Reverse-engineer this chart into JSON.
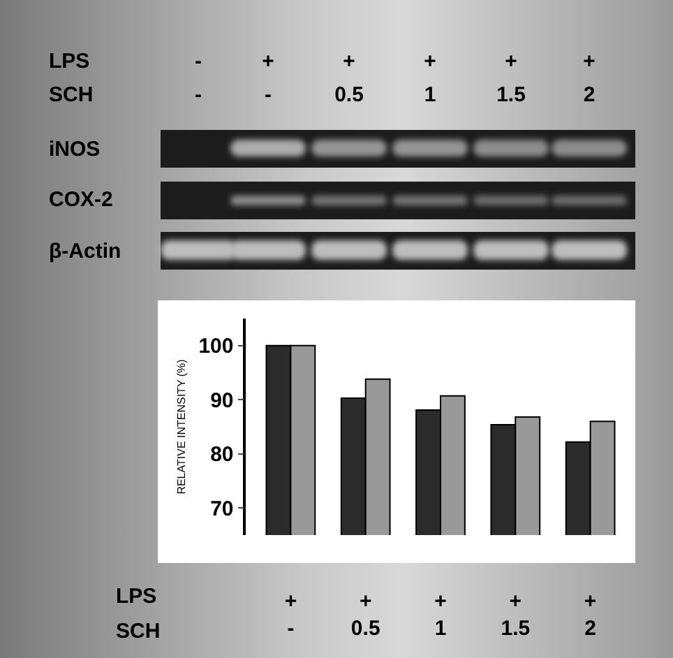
{
  "chart_data": {
    "type": "bar",
    "ylabel": "RELATIVE INTENSITY (%)",
    "categories": [
      "+\n-",
      "+\n0.5",
      "+\n1",
      "+\n1.5",
      "+\n2"
    ],
    "series": [
      {
        "color": "#2b2b2b",
        "values": [
          100,
          90.3,
          88.1,
          85.4,
          82.2
        ]
      },
      {
        "color": "#999999",
        "values": [
          100,
          93.8,
          90.7,
          86.8,
          86.0
        ]
      }
    ],
    "ylim": [
      65,
      105
    ],
    "yticks": [
      70,
      80,
      90,
      100
    ],
    "grid": false,
    "annotations": [
      "LPS",
      "-",
      "+",
      "+",
      "+",
      "+",
      "+",
      "SCH",
      "-",
      "-",
      "0.5",
      "1",
      "1.5",
      "2",
      "iNOS",
      "COX-2",
      "β-Actin",
      "LPS",
      "SCH"
    ]
  }
}
